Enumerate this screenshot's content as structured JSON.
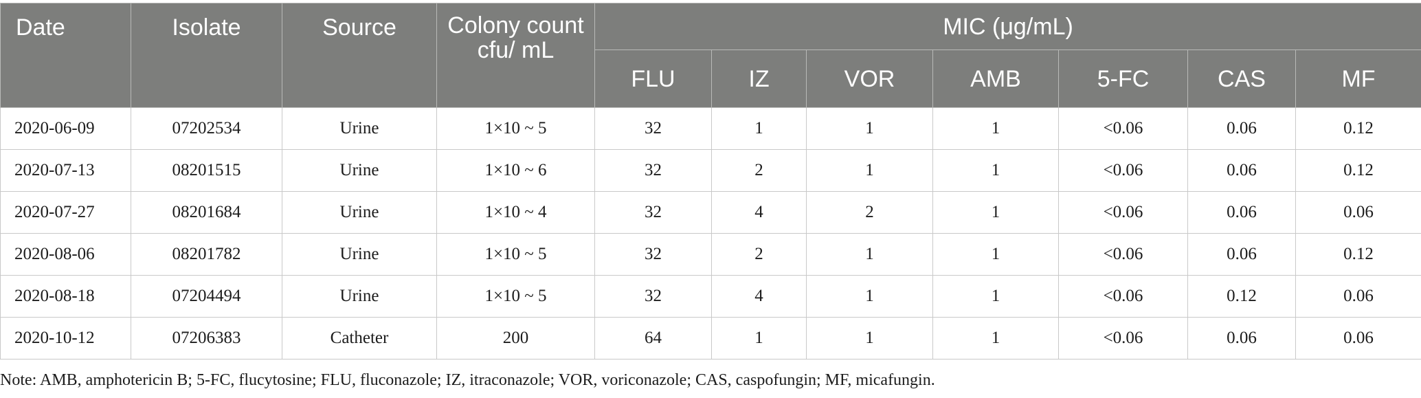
{
  "header": {
    "date": "Date",
    "isolate": "Isolate",
    "source": "Source",
    "colony": "Colony count cfu/ mL",
    "mic": "MIC (μg/mL)",
    "drugs": [
      "FLU",
      "IZ",
      "VOR",
      "AMB",
      "5-FC",
      "CAS",
      "MF"
    ]
  },
  "rows": [
    [
      "2020-06-09",
      "07202534",
      "Urine",
      "1×10 ~ 5",
      "32",
      "1",
      "1",
      "1",
      "<0.06",
      "0.06",
      "0.12"
    ],
    [
      "2020-07-13",
      "08201515",
      "Urine",
      "1×10 ~ 6",
      "32",
      "2",
      "1",
      "1",
      "<0.06",
      "0.06",
      "0.12"
    ],
    [
      "2020-07-27",
      "08201684",
      "Urine",
      "1×10 ~ 4",
      "32",
      "4",
      "2",
      "1",
      "<0.06",
      "0.06",
      "0.06"
    ],
    [
      "2020-08-06",
      "08201782",
      "Urine",
      "1×10 ~ 5",
      "32",
      "2",
      "1",
      "1",
      "<0.06",
      "0.06",
      "0.12"
    ],
    [
      "2020-08-18",
      "07204494",
      "Urine",
      "1×10 ~ 5",
      "32",
      "4",
      "1",
      "1",
      "<0.06",
      "0.12",
      "0.06"
    ],
    [
      "2020-10-12",
      "07206383",
      "Catheter",
      "200",
      "64",
      "1",
      "1",
      "1",
      "<0.06",
      "0.06",
      "0.06"
    ]
  ],
  "note": "Note: AMB, amphotericin B; 5-FC, flucytosine; FLU, fluconazole; IZ, itraconazole; VOR, voriconazole; CAS, caspofungin; MF, micafungin.",
  "colors": {
    "header_bg": "#7d7e7c",
    "header_text": "#ffffff",
    "grid": "#c9c9c9"
  }
}
